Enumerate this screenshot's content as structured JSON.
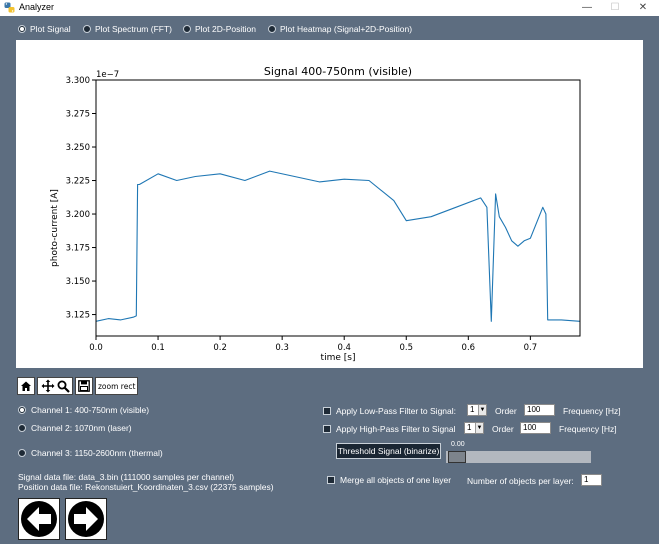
{
  "window": {
    "title": "Analyzer"
  },
  "plot_modes": [
    {
      "label": "Plot Signal",
      "selected": true
    },
    {
      "label": "Plot Spectrum (FFT)",
      "selected": false
    },
    {
      "label": "Plot 2D-Position",
      "selected": false
    },
    {
      "label": "Plot Heatmap (Signal+2D-Position)",
      "selected": false
    }
  ],
  "chart_data": {
    "type": "line",
    "title": "Signal 400-750nm (visible)",
    "xlabel": "time [s]",
    "ylabel": "photo-current [A]",
    "y_offset_label": "1e−7",
    "xlim": [
      0.0,
      0.78
    ],
    "ylim": [
      3.109,
      3.3
    ],
    "x_ticks": [
      "0.0",
      "0.1",
      "0.2",
      "0.3",
      "0.4",
      "0.5",
      "0.6",
      "0.7"
    ],
    "y_ticks": [
      "3.125",
      "3.150",
      "3.175",
      "3.200",
      "3.225",
      "3.250",
      "3.275",
      "3.300"
    ],
    "line_color": "#1f77b4",
    "grid": false,
    "series": [
      {
        "x": [
          0.0,
          0.02,
          0.04,
          0.06,
          0.065,
          0.067,
          0.07,
          0.1,
          0.13,
          0.16,
          0.2,
          0.24,
          0.28,
          0.32,
          0.36,
          0.4,
          0.44,
          0.48,
          0.5,
          0.54,
          0.58,
          0.62,
          0.63,
          0.637,
          0.644,
          0.65,
          0.66,
          0.67,
          0.68,
          0.69,
          0.7,
          0.72,
          0.725,
          0.728,
          0.75,
          0.78
        ],
        "y": [
          3.12,
          3.122,
          3.121,
          3.123,
          3.124,
          3.222,
          3.222,
          3.23,
          3.225,
          3.228,
          3.23,
          3.225,
          3.232,
          3.228,
          3.224,
          3.226,
          3.225,
          3.21,
          3.195,
          3.198,
          3.205,
          3.212,
          3.205,
          3.12,
          3.215,
          3.198,
          3.19,
          3.18,
          3.176,
          3.18,
          3.182,
          3.205,
          3.2,
          3.121,
          3.121,
          3.12
        ]
      }
    ]
  },
  "toolbar": {
    "home_icon": "home-icon",
    "pan_icon": "pan-icon",
    "zoom_icon": "zoom-icon",
    "save_icon": "save-icon",
    "zoom_rect_label": "zoom rect"
  },
  "channels": [
    {
      "label": "Channel 1: 400-750nm (visible)",
      "selected": true
    },
    {
      "label": "Channel 2: 1070nm (laser)",
      "selected": false
    },
    {
      "label": "Channel 3: 1150-2600nm (thermal)",
      "selected": false
    }
  ],
  "files": {
    "signal": "Signal data file: data_3.bin (111000 samples per channel)",
    "position": "Position data file: Rekonstuiert_Koordinaten_3.csv (22375 samples)"
  },
  "filters": {
    "lowpass": {
      "label": "Apply Low-Pass Filter to Signal:",
      "order_value": "1",
      "order_label": "Order",
      "freq_value": "100",
      "freq_unit": "Frequency [Hz]"
    },
    "highpass": {
      "label": "Apply High-Pass Filter to Signal",
      "order_value": "1",
      "order_label": "Order",
      "freq_value": "100",
      "freq_unit": "Frequency [Hz]"
    }
  },
  "threshold": {
    "button_label": "Threshold Signal (binarize)",
    "slider_value": "0.00",
    "slider_fraction": 0.0
  },
  "merge": {
    "label": "Merge all objects of one layer",
    "objects_label": "Number of objects per layer:",
    "objects_value": "1"
  },
  "nav": {
    "prev_icon": "arrow-left-icon",
    "next_icon": "arrow-right-icon"
  }
}
